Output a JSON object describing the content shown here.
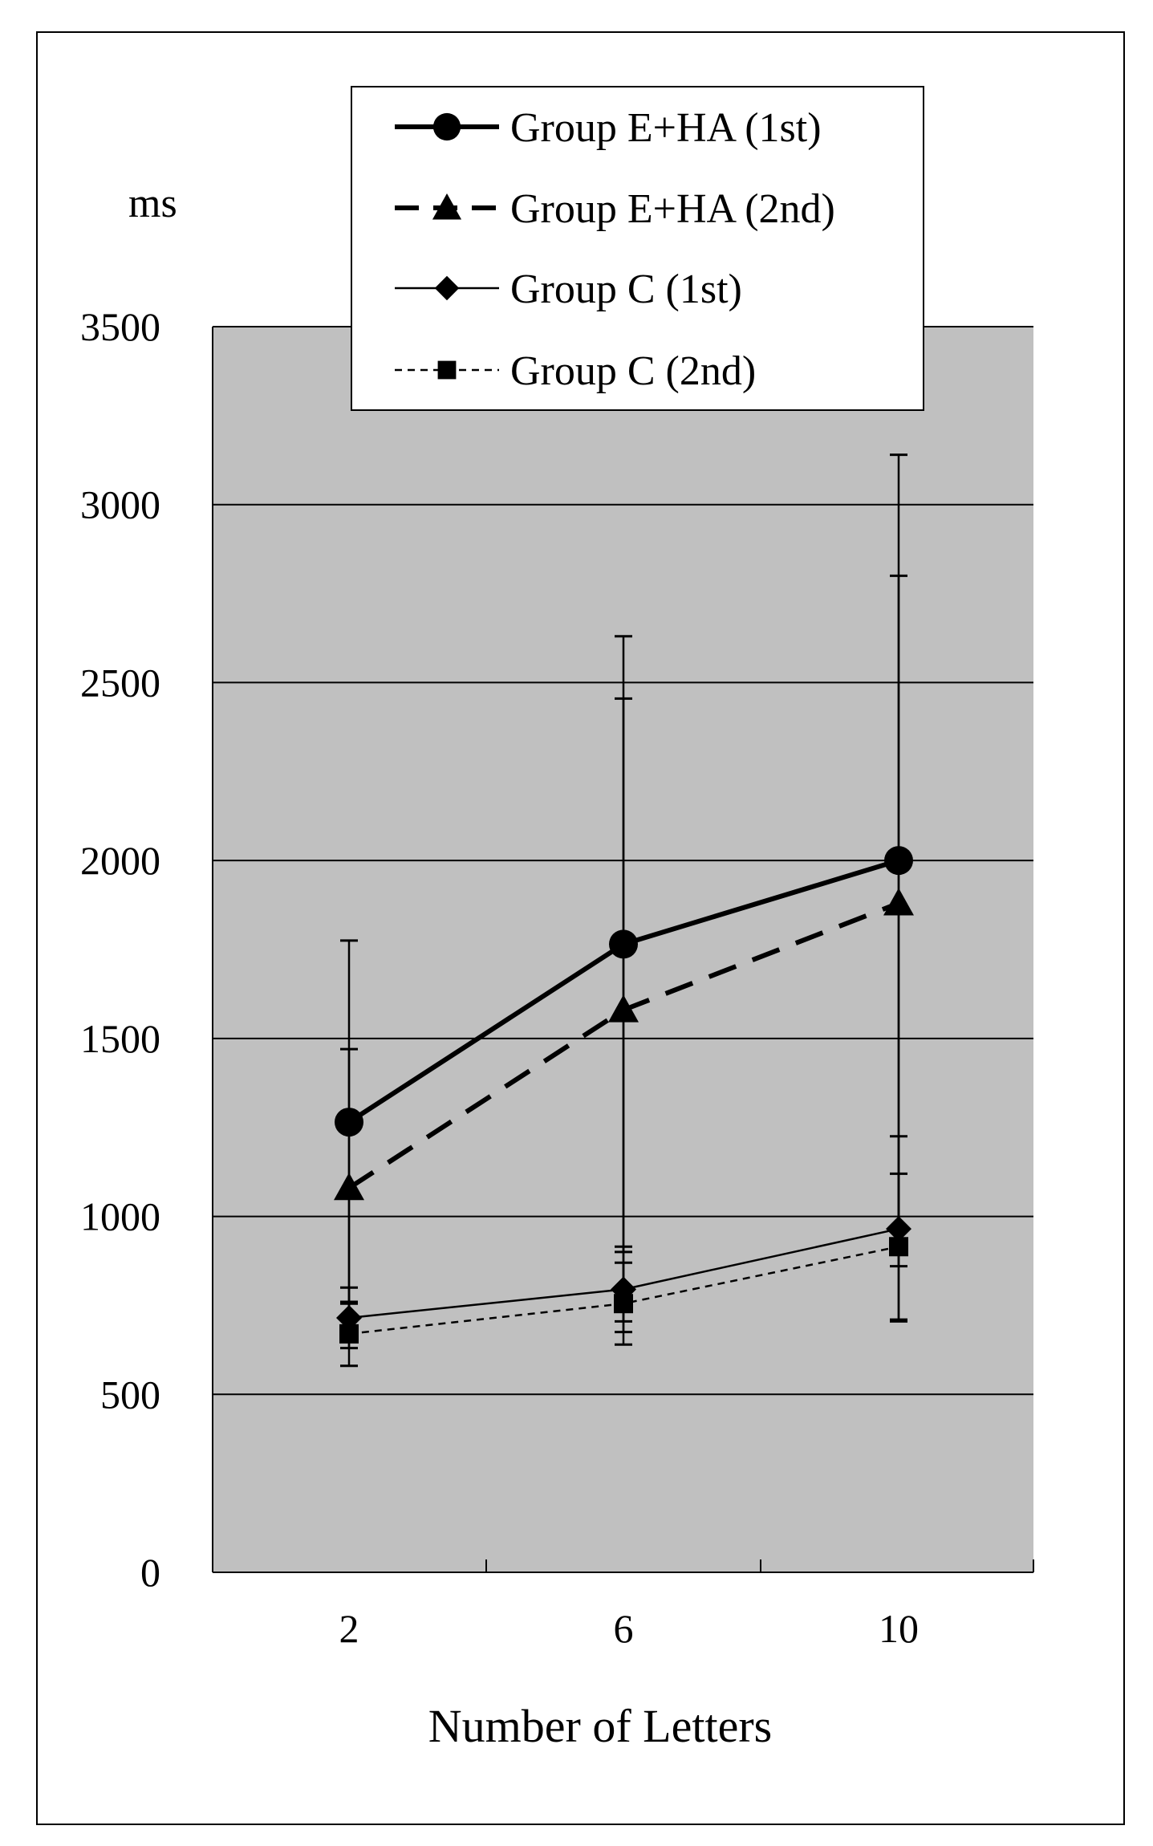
{
  "chart_data": {
    "type": "line",
    "ylabel": "ms",
    "xlabel": "Number of Letters",
    "categories": [
      "2",
      "6",
      "10"
    ],
    "ylim": [
      0,
      3500
    ],
    "yticks": [
      "0",
      "500",
      "1000",
      "1500",
      "2000",
      "2500",
      "3000",
      "3500"
    ],
    "grid": "horizontal",
    "legend_position": "top-right",
    "series": [
      {
        "name": "Group E+HA (1st)",
        "marker": "circle",
        "line": "solid-thick",
        "color": "#000000",
        "values": [
          1265,
          1765,
          2000
        ],
        "error": [
          510,
          865,
          1140
        ]
      },
      {
        "name": "Group E+HA (2nd)",
        "marker": "triangle",
        "line": "dashed-thick",
        "color": "#000000",
        "values": [
          1080,
          1580,
          1880
        ],
        "error": [
          390,
          875,
          920
        ]
      },
      {
        "name": "Group C (1st)",
        "marker": "diamond",
        "line": "solid-thin",
        "color": "#000000",
        "values": [
          715,
          795,
          965
        ],
        "error": [
          85,
          120,
          260
        ]
      },
      {
        "name": "Group C (2nd)",
        "marker": "square",
        "line": "dotted-thin",
        "color": "#000000",
        "values": [
          670,
          755,
          915
        ],
        "error": [
          90,
          115,
          205
        ]
      }
    ],
    "colors": {
      "plot_background": "#c0c0c0",
      "grid": "#000000"
    }
  }
}
